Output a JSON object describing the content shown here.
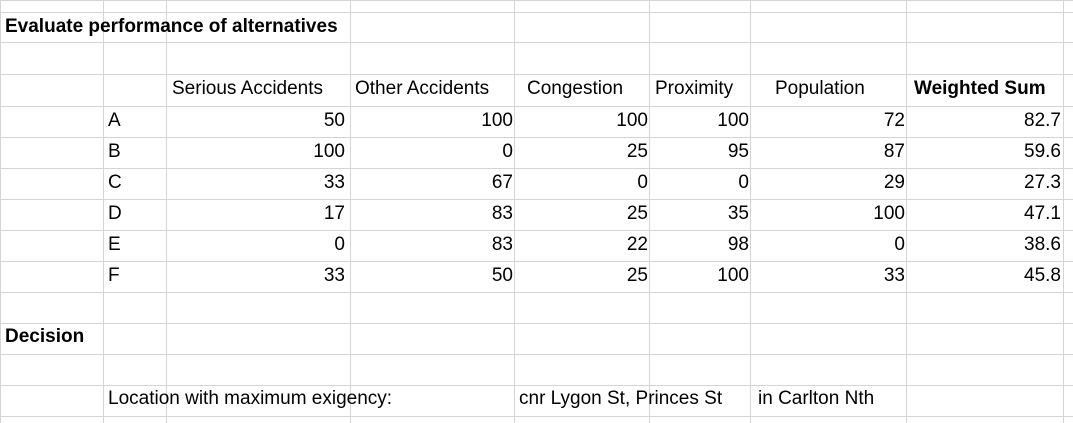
{
  "title": "Evaluate performance of alternatives",
  "headers": [
    "Serious Accidents",
    "Other Accidents",
    "Congestion",
    "Proximity",
    "Population",
    "Weighted Sum"
  ],
  "rows": [
    {
      "label": "A",
      "values": [
        "50",
        "100",
        "100",
        "100",
        "72",
        "82.7"
      ]
    },
    {
      "label": "B",
      "values": [
        "100",
        "0",
        "25",
        "95",
        "87",
        "59.6"
      ]
    },
    {
      "label": "C",
      "values": [
        "33",
        "67",
        "0",
        "0",
        "29",
        "27.3"
      ]
    },
    {
      "label": "D",
      "values": [
        "17",
        "83",
        "25",
        "35",
        "100",
        "47.1"
      ]
    },
    {
      "label": "E",
      "values": [
        "0",
        "83",
        "22",
        "98",
        "0",
        "38.6"
      ]
    },
    {
      "label": "F",
      "values": [
        "33",
        "50",
        "25",
        "100",
        "33",
        "45.8"
      ]
    }
  ],
  "decision_label": "Decision",
  "max_location": {
    "label": "Location with maximum exigency:",
    "value_part1": "cnr Lygon St, Princes St",
    "value_part2": "in Carlton Nth"
  }
}
